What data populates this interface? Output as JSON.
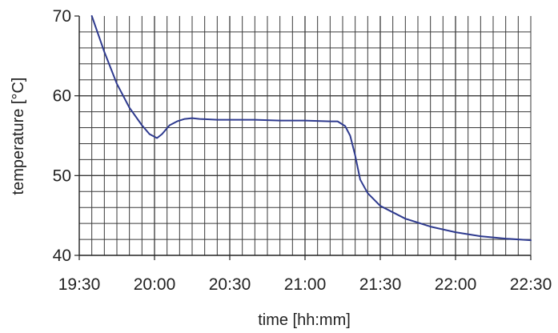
{
  "chart_data": {
    "type": "line",
    "xlabel": "time [hh:mm]",
    "ylabel": "temperature [°C]",
    "x_unit": "hh:mm",
    "xlim": [
      "19:30",
      "22:30"
    ],
    "ylim": [
      40,
      70
    ],
    "x_ticks": [
      "19:30",
      "20:00",
      "20:30",
      "21:00",
      "21:30",
      "22:00",
      "22:30"
    ],
    "y_ticks": [
      40,
      50,
      60,
      70
    ],
    "grid": true,
    "line_color": "#2f3b8f",
    "series": [
      {
        "x": [
          "19:35",
          "19:40",
          "19:45",
          "19:50",
          "19:55",
          "19:58",
          "20:01",
          "20:03",
          "20:06",
          "20:09",
          "20:12",
          "20:15",
          "20:18",
          "20:25",
          "20:30",
          "20:40",
          "20:50",
          "21:00",
          "21:10",
          "21:13",
          "21:16",
          "21:18",
          "21:20",
          "21:22",
          "21:25",
          "21:30",
          "21:40",
          "21:50",
          "22:00",
          "22:10",
          "22:20",
          "22:30"
        ],
        "y": [
          70,
          65.5,
          61.5,
          58.5,
          56.3,
          55.2,
          54.7,
          55.2,
          56.3,
          56.8,
          57.1,
          57.2,
          57.1,
          57.0,
          57.0,
          57.0,
          56.9,
          56.9,
          56.8,
          56.8,
          56.2,
          55.0,
          52.5,
          49.5,
          47.8,
          46.2,
          44.6,
          43.6,
          42.9,
          42.4,
          42.1,
          41.9
        ]
      }
    ]
  }
}
